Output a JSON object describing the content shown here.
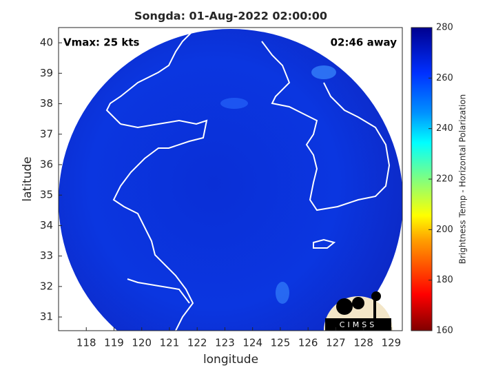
{
  "chart_data": {
    "type": "map",
    "title": "Songda: 01-Aug-2022 02:00:00",
    "annotations": [
      "Vmax: 25 kts",
      "02:46 away"
    ],
    "x_label": "longitude",
    "y_label": "latitude",
    "xlim": [
      117.0,
      129.4
    ],
    "xticks": [
      118,
      119,
      120,
      121,
      122,
      123,
      124,
      125,
      126,
      127,
      128,
      129
    ],
    "ylim": [
      30.55,
      40.5
    ],
    "yticks": [
      31,
      32,
      33,
      34,
      35,
      36,
      37,
      38,
      39,
      40
    ],
    "colorbar": {
      "label": "Brightness Temp - Horizontal Polarization",
      "clim": [
        160,
        280
      ],
      "ticks": [
        160,
        180,
        200,
        220,
        240,
        260,
        280
      ]
    },
    "logo": "CIMSS"
  }
}
